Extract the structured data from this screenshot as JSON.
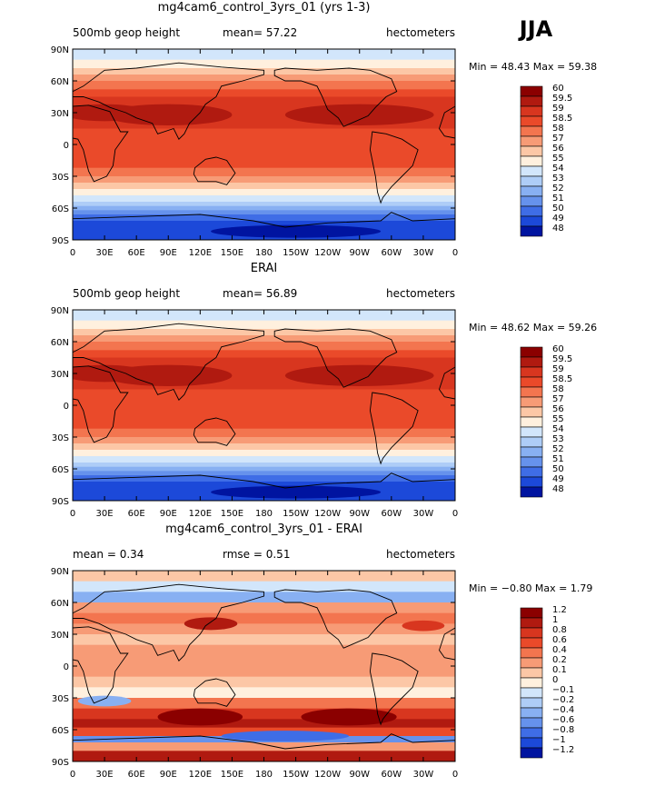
{
  "season": "JJA",
  "panels": [
    {
      "title": "mg4cam6_control_3yrs_01 (yrs 1-3)",
      "left_label": "500mb  geop height",
      "center_label": "mean=  57.22",
      "units": "hectometers",
      "minmax": "Min =  48.43  Max =  59.38",
      "kind": "abs",
      "levels": [
        "60",
        "59.5",
        "59",
        "58.5",
        "58",
        "57",
        "56",
        "55",
        "54",
        "53",
        "52",
        "51",
        "50",
        "49",
        "48"
      ]
    },
    {
      "title": "ERAI",
      "left_label": "500mb  geop height",
      "center_label": "mean=  56.89",
      "units": "hectometers",
      "minmax": "Min =  48.62  Max =  59.26",
      "kind": "abs",
      "levels": [
        "60",
        "59.5",
        "59",
        "58.5",
        "58",
        "57",
        "56",
        "55",
        "54",
        "53",
        "52",
        "51",
        "50",
        "49",
        "48"
      ]
    },
    {
      "title": "mg4cam6_control_3yrs_01 - ERAI",
      "left_label": "mean =     0.34",
      "center_label": "rmse =     0.51",
      "units": "hectometers",
      "minmax": "Min = −0.80  Max =    1.79",
      "kind": "diff",
      "levels": [
        "1.2",
        "1",
        "0.8",
        "0.6",
        "0.4",
        "0.2",
        "0.1",
        "0",
        "−0.1",
        "−0.2",
        "−0.4",
        "−0.6",
        "−0.8",
        "−1",
        "−1.2"
      ]
    }
  ],
  "chart_data": {
    "type": "heatmap",
    "variable": "500mb geop height",
    "units": "hectometers",
    "xticks": [
      "0",
      "30E",
      "60E",
      "90E",
      "120E",
      "150E",
      "180",
      "150W",
      "120W",
      "90W",
      "60W",
      "30W",
      "0"
    ],
    "yticks": [
      "90N",
      "60N",
      "30N",
      "0",
      "30S",
      "60S",
      "90S"
    ],
    "xlim": [
      0,
      360
    ],
    "ylim": [
      -90,
      90
    ],
    "abs_colors": [
      "#8b0000",
      "#b01a10",
      "#d8361f",
      "#ea4a2a",
      "#f3754f",
      "#f79b76",
      "#fcc7a6",
      "#fff0de",
      "#d2e6fb",
      "#aecdf7",
      "#88b0f2",
      "#6692ec",
      "#3f6de6",
      "#1c49d9",
      "#0014a0"
    ],
    "diff_colors": [
      "#8b0000",
      "#b01a10",
      "#d8361f",
      "#ea4a2a",
      "#f3754f",
      "#f79b76",
      "#fcc7a6",
      "#fff0de",
      "#d2e6fb",
      "#aecdf7",
      "#88b0f2",
      "#6692ec",
      "#3f6de6",
      "#1c49d9",
      "#0014a0"
    ],
    "zonal_profile_model": [
      {
        "lat": 90,
        "value": 54.4
      },
      {
        "lat": 70,
        "value": 55.2
      },
      {
        "lat": 60,
        "value": 56.0
      },
      {
        "lat": 45,
        "value": 57.6
      },
      {
        "lat": 30,
        "value": 58.8
      },
      {
        "lat": 0,
        "value": 58.7
      },
      {
        "lat": -20,
        "value": 58.5
      },
      {
        "lat": -35,
        "value": 57.0
      },
      {
        "lat": -50,
        "value": 54.0
      },
      {
        "lat": -65,
        "value": 51.0
      },
      {
        "lat": -80,
        "value": 49.5
      },
      {
        "lat": -90,
        "value": 49.0
      }
    ],
    "zonal_profile_erai": [
      {
        "lat": 90,
        "value": 54.3
      },
      {
        "lat": 70,
        "value": 55.0
      },
      {
        "lat": 60,
        "value": 55.8
      },
      {
        "lat": 45,
        "value": 57.3
      },
      {
        "lat": 30,
        "value": 58.6
      },
      {
        "lat": 0,
        "value": 58.4
      },
      {
        "lat": -20,
        "value": 58.2
      },
      {
        "lat": -35,
        "value": 56.7
      },
      {
        "lat": -50,
        "value": 53.6
      },
      {
        "lat": -65,
        "value": 50.6
      },
      {
        "lat": -80,
        "value": 49.2
      },
      {
        "lat": -90,
        "value": 48.8
      }
    ]
  }
}
